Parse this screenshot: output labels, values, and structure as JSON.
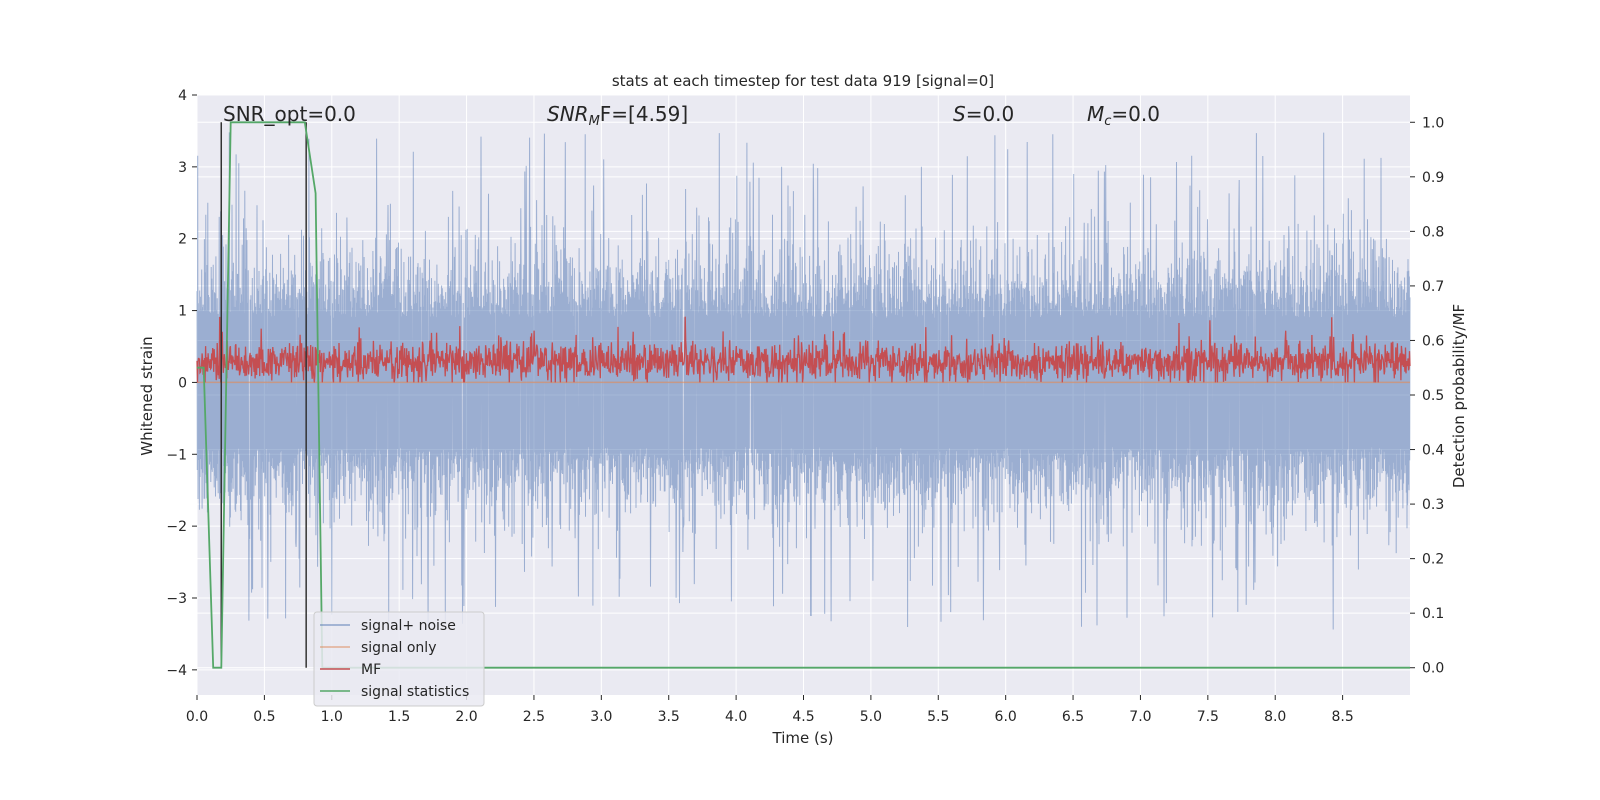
{
  "chart_data": {
    "type": "line",
    "title": "stats at each timestep for test data 919 [signal=0]",
    "xlabel": "Time (s)",
    "ylabel": "Whitened strain",
    "y2label": "Detection probability/MF",
    "xlim": [
      0,
      9
    ],
    "ylim": [
      -4.35,
      4.0
    ],
    "y2lim": [
      -0.05,
      1.05
    ],
    "xticks": [
      "0.0",
      "0.5",
      "1.0",
      "1.5",
      "2.0",
      "2.5",
      "3.0",
      "3.5",
      "4.0",
      "4.5",
      "5.0",
      "5.5",
      "6.0",
      "6.5",
      "7.0",
      "7.5",
      "8.0",
      "8.5"
    ],
    "yticks": [
      "4",
      "3",
      "2",
      "1",
      "0",
      "−1",
      "−2",
      "−3",
      "−4"
    ],
    "y2ticks": [
      "1.0",
      "0.9",
      "0.8",
      "0.7",
      "0.6",
      "0.5",
      "0.4",
      "0.3",
      "0.2",
      "0.1",
      "0.0"
    ],
    "grid": true,
    "legend_position": "lower-left",
    "annotations": {
      "snr_opt": "SNR_opt=0.0",
      "snr_mf_var": "SNR",
      "snr_mf_sub": "M",
      "snr_mf_rest": "F=[4.59]",
      "s_var": "S",
      "s_rest": "=0.0",
      "mc_var": "M",
      "mc_sub": "c",
      "mc_rest": "=0.0"
    },
    "series": [
      {
        "name": "signal+ noise",
        "color": "#4c72b0",
        "axis": "left",
        "description_range": [
          -4.0,
          3.6
        ],
        "typical_range": [
          -1.7,
          1.7
        ]
      },
      {
        "name": "signal only",
        "color": "#dd8452",
        "axis": "left",
        "values_constant": 0.0
      },
      {
        "name": "MF",
        "color": "#c44e52",
        "axis": "left",
        "typical_range": [
          0.0,
          0.6
        ],
        "max": 1.0
      },
      {
        "name": "signal statistics",
        "color": "#55a868",
        "axis": "right",
        "x": [
          0.0,
          0.05,
          0.12,
          0.18,
          0.25,
          0.3,
          0.8,
          0.88,
          0.93,
          1.0,
          9.0
        ],
        "y": [
          0.55,
          0.55,
          0.0,
          0.0,
          1.0,
          1.0,
          1.0,
          0.87,
          0.0,
          0.0,
          0.0
        ]
      }
    ],
    "vertical_markers_x": [
      0.18,
      0.81
    ],
    "colors": {
      "background": "#eaeaf2",
      "grid": "#ffffff",
      "marker": "#333333"
    }
  }
}
